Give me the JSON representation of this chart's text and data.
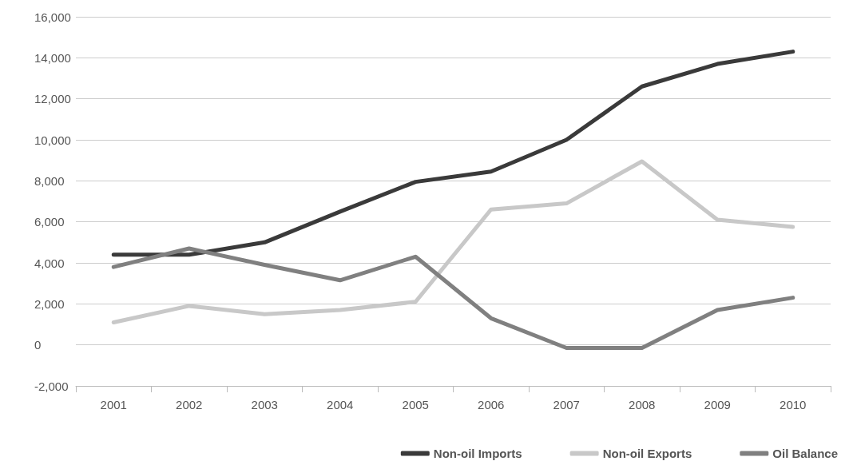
{
  "chart_data": {
    "type": "line",
    "categories": [
      "2001",
      "2002",
      "2003",
      "2004",
      "2005",
      "2006",
      "2007",
      "2008",
      "2009",
      "2010"
    ],
    "series": [
      {
        "name": "Non-oil Imports",
        "color": "#3a3a3a",
        "values": [
          4400,
          4400,
          5000,
          6500,
          7950,
          8450,
          10000,
          12600,
          13700,
          14300
        ]
      },
      {
        "name": "Non-oil Exports",
        "color": "#c8c8c8",
        "values": [
          1100,
          1900,
          1500,
          1700,
          2100,
          6600,
          6900,
          8950,
          6100,
          5750
        ]
      },
      {
        "name": "Oil Balance",
        "color": "#808080",
        "values": [
          3800,
          4700,
          3900,
          3150,
          4300,
          1300,
          -150,
          -150,
          1700,
          2300
        ]
      }
    ],
    "ylim": [
      -2000,
      16000
    ],
    "yticks": [
      {
        "value": -2000,
        "label": "-2,000"
      },
      0,
      {
        "value": 2000,
        "label": "2,000"
      },
      {
        "value": 4000,
        "label": "4,000"
      },
      {
        "value": 6000,
        "label": "6,000"
      },
      {
        "value": 8000,
        "label": "8,000"
      },
      {
        "value": 10000,
        "label": "10,000"
      },
      {
        "value": 12000,
        "label": "12,000"
      },
      {
        "value": 14000,
        "label": "14,000"
      },
      {
        "value": 16000,
        "label": "16,000"
      }
    ],
    "grid": "y",
    "legend": "bottom right",
    "marker": "none",
    "line_style": "solid"
  }
}
